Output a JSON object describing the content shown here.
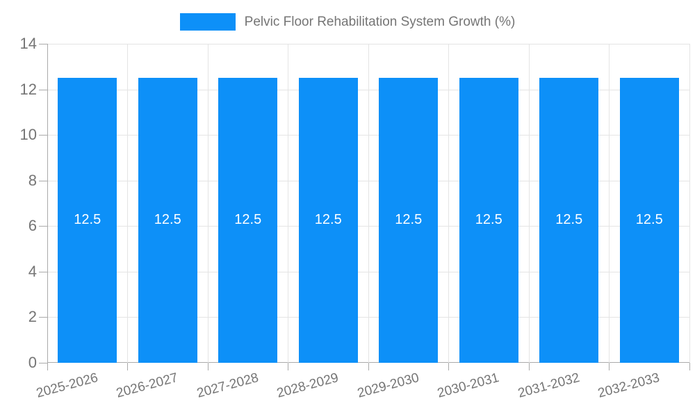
{
  "chart_data": {
    "type": "bar",
    "title": "Pelvic Floor Rehabilitation System Growth (%)",
    "legend_label": "Pelvic Floor Rehabilitation System Growth (%)",
    "categories": [
      "2025-2026",
      "2026-2027",
      "2027-2028",
      "2028-2029",
      "2029-2030",
      "2030-2031",
      "2031-2032",
      "2032-2033"
    ],
    "values": [
      12.5,
      12.5,
      12.5,
      12.5,
      12.5,
      12.5,
      12.5,
      12.5
    ],
    "value_labels": [
      "12.5",
      "12.5",
      "12.5",
      "12.5",
      "12.5",
      "12.5",
      "12.5",
      "12.5"
    ],
    "xlabel": "",
    "ylabel": "",
    "ylim": [
      0,
      14
    ],
    "yticks": [
      0,
      2,
      4,
      6,
      8,
      10,
      12,
      14
    ],
    "grid": "on",
    "legend_position": "top-center",
    "colors": {
      "bar": "#0d90f8",
      "axis_text": "#757575",
      "value_label_text": "#ffffff",
      "gridline": "#e4e4e4",
      "axis_line": "#aaaaaa",
      "background": "#ffffff"
    }
  }
}
